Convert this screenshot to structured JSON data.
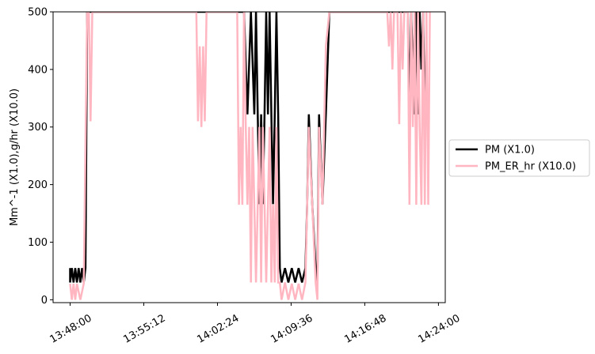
{
  "chart_data": {
    "type": "line",
    "title": "",
    "xlabel": "",
    "ylabel": "Mm^-1 (X1.0),g/hr (X10.0)",
    "x_ticks": [
      "13:48:00",
      "13:55:12",
      "14:02:24",
      "14:09:36",
      "14:16:48",
      "14:24:00"
    ],
    "y_ticks": [
      "0",
      "100",
      "200",
      "300",
      "400",
      "500"
    ],
    "xlim": [
      "13:46:20",
      "14:24:40"
    ],
    "ylim": [
      -5,
      500
    ],
    "grid": false,
    "legend_position": "right-center",
    "series": [
      {
        "name": "PM (X1.0)",
        "color": "#000000",
        "x": [
          "13:48:00",
          "13:48:00",
          "13:48:10",
          "13:48:20",
          "13:48:30",
          "13:48:40",
          "13:48:50",
          "13:49:00",
          "13:49:10",
          "13:49:20",
          "13:49:30",
          "13:49:40",
          "13:49:50",
          "13:50:00",
          "13:50:10",
          "13:50:20",
          "13:50:30",
          "14:05:00",
          "14:05:20",
          "14:05:40",
          "14:06:00",
          "14:06:10",
          "14:06:20",
          "14:06:30",
          "14:06:40",
          "14:06:50",
          "14:07:00",
          "14:07:10",
          "14:07:20",
          "14:07:30",
          "14:07:40",
          "14:07:50",
          "14:08:00",
          "14:08:10",
          "14:08:20",
          "14:08:30",
          "14:08:40",
          "14:09:00",
          "14:09:20",
          "14:09:40",
          "14:10:00",
          "14:10:20",
          "14:10:40",
          "14:11:00",
          "14:11:10",
          "14:11:20",
          "14:11:40",
          "14:12:00",
          "14:12:10",
          "14:12:20",
          "14:12:40",
          "14:13:00",
          "14:13:20",
          "14:21:00",
          "14:21:10",
          "14:21:20",
          "14:21:30",
          "14:21:40",
          "14:21:50",
          "14:22:00",
          "14:22:10",
          "14:22:20",
          "14:22:30",
          "14:22:40"
        ],
        "y": [
          55,
          30,
          55,
          30,
          55,
          30,
          55,
          30,
          55,
          30,
          55,
          500,
          500,
          500,
          500,
          500,
          500,
          500,
          322,
          500,
          322,
          500,
          322,
          166,
          322,
          166,
          322,
          500,
          322,
          500,
          322,
          166,
          322,
          500,
          322,
          55,
          30,
          55,
          30,
          55,
          30,
          55,
          30,
          55,
          166,
          322,
          166,
          55,
          30,
          322,
          166,
          322,
          500,
          500,
          322,
          500,
          400,
          322,
          500,
          322,
          500,
          400,
          500,
          322
        ]
      },
      {
        "name": "PM_ER_hr (X10.0)",
        "color": "#ffb6c1",
        "x": [
          "13:48:00",
          "13:48:10",
          "13:48:20",
          "13:48:30",
          "13:48:40",
          "13:49:00",
          "13:49:20",
          "13:49:40",
          "13:49:50",
          "13:50:00",
          "13:50:10",
          "13:50:20",
          "13:50:30",
          "14:00:20",
          "14:00:30",
          "14:00:40",
          "14:00:50",
          "14:01:00",
          "14:01:10",
          "14:01:20",
          "14:04:20",
          "14:04:30",
          "14:04:40",
          "14:04:50",
          "14:05:00",
          "14:05:10",
          "14:05:20",
          "14:05:30",
          "14:05:40",
          "14:05:50",
          "14:06:00",
          "14:06:10",
          "14:06:20",
          "14:06:30",
          "14:06:40",
          "14:06:50",
          "14:07:00",
          "14:07:10",
          "14:07:20",
          "14:07:30",
          "14:07:40",
          "14:07:50",
          "14:08:00",
          "14:08:10",
          "14:08:20",
          "14:08:30",
          "14:08:40",
          "14:09:00",
          "14:09:20",
          "14:09:40",
          "14:10:00",
          "14:10:20",
          "14:10:40",
          "14:11:00",
          "14:11:10",
          "14:11:20",
          "14:11:40",
          "14:12:00",
          "14:12:10",
          "14:12:20",
          "14:12:40",
          "14:13:00",
          "14:13:20",
          "14:19:00",
          "14:19:10",
          "14:19:20",
          "14:19:30",
          "14:19:40",
          "14:20:00",
          "14:20:10",
          "14:20:20",
          "14:20:30",
          "14:20:40",
          "14:21:00",
          "14:21:10",
          "14:21:20",
          "14:21:30",
          "14:21:40",
          "14:21:50",
          "14:22:00",
          "14:22:10",
          "14:22:20",
          "14:22:30",
          "14:22:40",
          "14:22:50",
          "14:23:00",
          "14:23:10"
        ],
        "y": [
          28,
          0,
          28,
          0,
          28,
          0,
          28,
          500,
          500,
          310,
          500,
          500,
          500,
          500,
          310,
          440,
          300,
          440,
          310,
          500,
          500,
          165,
          300,
          165,
          500,
          300,
          165,
          300,
          30,
          300,
          165,
          30,
          165,
          300,
          30,
          300,
          165,
          30,
          165,
          300,
          30,
          165,
          30,
          300,
          30,
          30,
          0,
          30,
          0,
          28,
          0,
          28,
          0,
          30,
          165,
          300,
          165,
          30,
          0,
          300,
          165,
          440,
          500,
          500,
          440,
          500,
          400,
          500,
          500,
          305,
          500,
          400,
          500,
          500,
          165,
          500,
          300,
          500,
          165,
          500,
          300,
          165,
          500,
          165,
          500,
          165,
          500
        ]
      }
    ]
  }
}
